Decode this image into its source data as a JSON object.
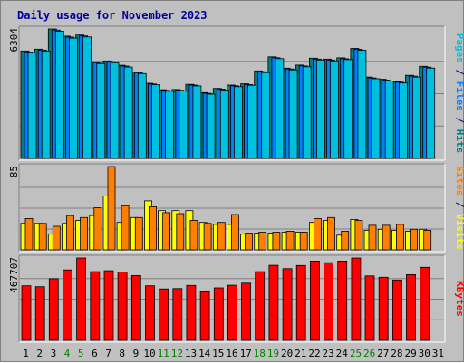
{
  "chart_data": {
    "type": "bar",
    "title": "Daily usage for November 2023",
    "days": [
      "1",
      "2",
      "3",
      "4",
      "5",
      "6",
      "7",
      "8",
      "9",
      "10",
      "11",
      "12",
      "13",
      "14",
      "15",
      "16",
      "17",
      "18",
      "19",
      "20",
      "21",
      "22",
      "23",
      "24",
      "25",
      "26",
      "27",
      "28",
      "29",
      "30",
      "31"
    ],
    "weekend_days": [
      "4",
      "5",
      "11",
      "12",
      "18",
      "19",
      "25",
      "26"
    ],
    "panels": [
      {
        "id": "hits",
        "ymax_label": "6304",
        "ymax": 6304,
        "legend": [
          {
            "text": "Pages",
            "color": "#00c0e0"
          },
          {
            "text": " / ",
            "color": "#000080"
          },
          {
            "text": "Files",
            "color": "#0080ff"
          },
          {
            "text": " / ",
            "color": "#000080"
          },
          {
            "text": "Hits",
            "color": "#008080"
          }
        ],
        "series": [
          {
            "name": "Hits",
            "color": "#008080",
            "values": [
              5232,
              5320,
              6304,
              5956,
              6010,
              4702,
              4749,
              4537,
              4213,
              3661,
              3345,
              3354,
              3607,
              3206,
              3407,
              3571,
              3634,
              4263,
              4947,
              4395,
              4547,
              4879,
              4836,
              4896,
              5356,
              3961,
              3853,
              3751,
              4048,
              4484,
              0
            ]
          },
          {
            "name": "Files",
            "color": "#0080ff",
            "values": [
              5186,
              5275,
              6250,
              5909,
              5963,
              4664,
              4706,
              4496,
              4174,
              3625,
              3310,
              3320,
              3572,
              3171,
              3372,
              3535,
              3597,
              4223,
              4903,
              4354,
              4504,
              4835,
              4792,
              4852,
              5310,
              3921,
              3814,
              3711,
              4007,
              4442,
              0
            ]
          },
          {
            "name": "Pages",
            "color": "#00c0e0",
            "values": [
              5140,
              5230,
              6200,
              5860,
              5915,
              4620,
              4660,
              4450,
              4130,
              3590,
              3270,
              3280,
              3530,
              3130,
              3330,
              3490,
              3560,
              4180,
              4860,
              4310,
              4460,
              4790,
              4750,
              4810,
              5270,
              3880,
              3770,
              3670,
              3960,
              4400,
              0
            ]
          }
        ]
      },
      {
        "id": "visits",
        "ymax_label": "85",
        "ymax": 85,
        "legend": [
          {
            "text": "Sites",
            "color": "#ff8000"
          },
          {
            "text": " / ",
            "color": "#000080"
          },
          {
            "text": "Visits",
            "color": "#ffff00"
          }
        ],
        "series": [
          {
            "name": "Visits",
            "color": "#ffff00",
            "values": [
              27,
              27,
              16,
              27,
              30,
              35,
              55,
              28,
              33,
              50,
              40,
              40,
              40,
              28,
              26,
              26,
              16,
              17,
              17,
              18,
              18,
              28,
              30,
              15,
              31,
              20,
              21,
              20,
              19,
              21,
              0
            ]
          },
          {
            "name": "Sites",
            "color": "#ff8000",
            "values": [
              32,
              27,
              24,
              35,
              33,
              43,
              85,
              45,
              33,
              44,
              38,
              37,
              30,
              27,
              28,
              36,
              17,
              18,
              18,
              19,
              18,
              32,
              33,
              19,
              30,
              25,
              25,
              26,
              21,
              20,
              0
            ]
          }
        ]
      },
      {
        "id": "kbytes",
        "ymax_label": "467707",
        "ymax": 467707,
        "legend": [
          {
            "text": "KBytes",
            "color": "#ff0000"
          }
        ],
        "series": [
          {
            "name": "KBytes",
            "color": "#ff0000",
            "values": [
              310000,
              305000,
              350000,
              400000,
              467707,
              390000,
              395000,
              388000,
              368000,
              310000,
              292000,
              294000,
              312000,
              276000,
              298000,
              313000,
              325000,
              390000,
              426000,
              407000,
              425000,
              450000,
              441000,
              450000,
              467707,
              366000,
              358000,
              343000,
              373000,
              415000,
              0
            ]
          }
        ]
      }
    ]
  }
}
